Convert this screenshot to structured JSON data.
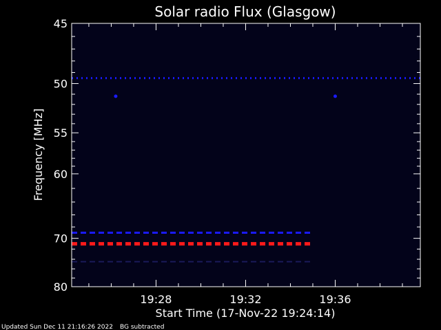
{
  "chart_data": {
    "type": "heatmap",
    "title": "Solar radio Flux (Glasgow)",
    "xlabel": "Start Time (17-Nov-22 19:24:14)",
    "ylabel": "Frequency [MHz]",
    "y_ticks": [
      45,
      50,
      55,
      60,
      70,
      80
    ],
    "x_ticks": [
      "19:28",
      "19:32",
      "19:36"
    ],
    "x_tick_minutes": [
      28,
      32,
      36
    ],
    "x_range_minutes": [
      24.233,
      39.8
    ],
    "footer_left": "Updated Sun Dec 11 21:16:26 2022",
    "footer_right": "BG subtracted",
    "colors": {
      "background": "#03031a",
      "frame": "#ffffff",
      "band_blue": "#1a1aff",
      "band_red": "#ff1a1a",
      "band_faint": "#1a1a5a"
    },
    "bands": [
      {
        "name": "49.5 MHz",
        "freq": 49.5,
        "start_min": 24.233,
        "end_min": 39.8,
        "color": "band_blue",
        "dashed": true
      },
      {
        "name": "69 MHz",
        "freq": 69.0,
        "start_min": 24.233,
        "end_min": 34.9,
        "color": "band_blue",
        "dashed": true
      },
      {
        "name": "71 MHz",
        "freq": 71.0,
        "start_min": 24.233,
        "end_min": 34.9,
        "color": "band_red",
        "dashed": true
      },
      {
        "name": "74 MHz",
        "freq": 74.5,
        "start_min": 24.233,
        "end_min": 34.9,
        "color": "band_faint",
        "dashed": true
      }
    ],
    "points": [
      {
        "freq": 51.2,
        "minute": 26.2,
        "color": "band_blue"
      },
      {
        "freq": 51.2,
        "minute": 36.0,
        "color": "band_blue"
      }
    ]
  }
}
